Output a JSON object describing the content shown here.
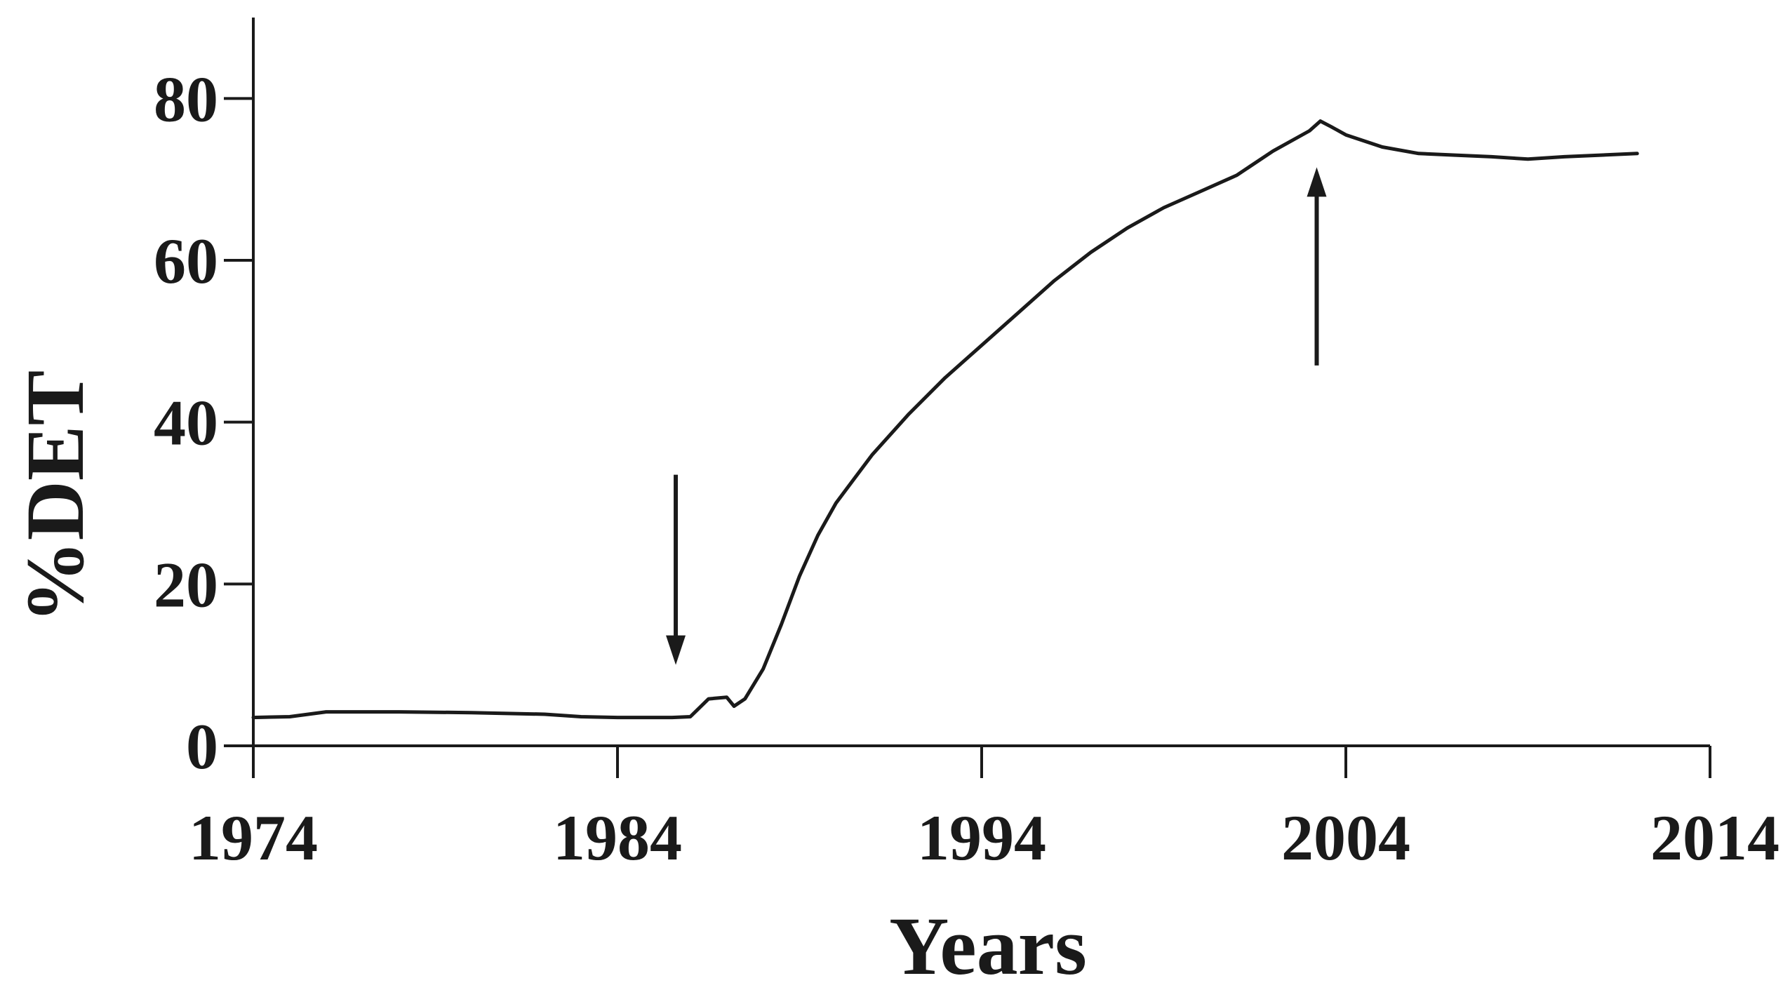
{
  "chart_data": {
    "type": "line",
    "title": "",
    "xlabel": "Years",
    "ylabel": "%DET",
    "xlim": [
      1974,
      2014
    ],
    "ylim": [
      0,
      90
    ],
    "x_ticks": [
      1974,
      1984,
      1994,
      2004,
      2014
    ],
    "x_tick_labels": [
      "1974",
      "1984",
      "1994",
      "2004",
      "2014"
    ],
    "y_ticks": [
      0,
      20,
      40,
      60,
      80
    ],
    "y_tick_labels": [
      "0",
      "20",
      "40",
      "60",
      "80"
    ],
    "grid": false,
    "legend": "none",
    "line_color": "#1a1a1a",
    "series": [
      {
        "x": [
          1974,
          1975,
          1976,
          1978,
          1980,
          1982,
          1983,
          1984,
          1985,
          1985.5,
          1986,
          1986.5,
          1987,
          1987.2,
          1987.5,
          1988,
          1988.5,
          1989,
          1989.5,
          1990,
          1990.5,
          1991,
          1992,
          1993,
          1994,
          1995,
          1996,
          1997,
          1998,
          1999,
          2000,
          2001,
          2002,
          2003,
          2003.3,
          2003.6,
          2004,
          2005,
          2006,
          2007,
          2008,
          2009,
          2010,
          2011,
          2012
        ],
        "y": [
          3.5,
          3.6,
          4.2,
          4.2,
          4.1,
          3.9,
          3.6,
          3.5,
          3.5,
          3.5,
          3.6,
          5.8,
          6.0,
          4.9,
          5.8,
          9.5,
          15,
          21,
          26,
          30,
          33,
          36,
          41,
          45.5,
          49.5,
          53.5,
          57.5,
          61,
          64,
          66.5,
          68.5,
          70.5,
          73.5,
          76,
          77.2,
          76.5,
          75.5,
          74,
          73.2,
          73,
          72.8,
          72.5,
          72.8,
          73,
          73.2
        ]
      }
    ],
    "annotations": [
      {
        "type": "arrow",
        "direction": "down",
        "x": 1985.6,
        "y_from": 33.5,
        "y_to": 10
      },
      {
        "type": "arrow",
        "direction": "up",
        "x": 2003.2,
        "y_from": 47,
        "y_to": 71.5
      }
    ]
  }
}
